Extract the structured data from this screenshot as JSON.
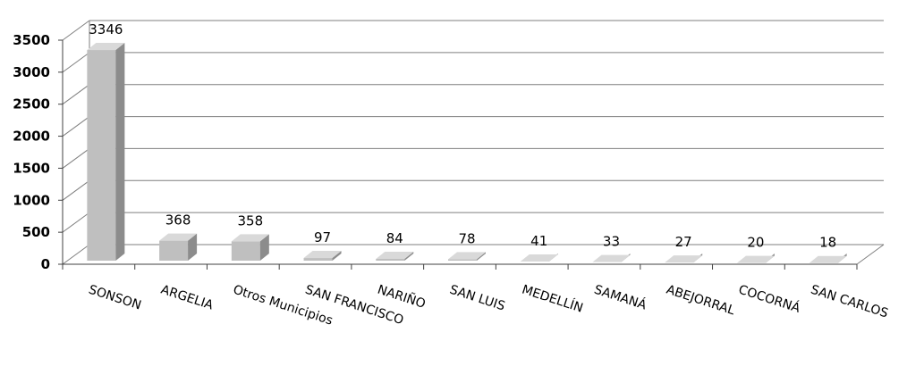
{
  "chart_data": {
    "type": "bar",
    "categories": [
      "SONSON",
      "ARGELIA",
      "Otros Municipios",
      "SAN FRANCISCO",
      "NARIÑO",
      "SAN LUIS",
      "MEDELLÍN",
      "SAMANÁ",
      "ABEJORRAL",
      "COCORNÁ",
      "SAN CARLOS"
    ],
    "values": [
      3346,
      368,
      358,
      97,
      84,
      78,
      41,
      33,
      27,
      20,
      18
    ],
    "data_labels": [
      "3346",
      "368",
      "358",
      "97",
      "84",
      "78",
      "41",
      "33",
      "27",
      "20",
      "18"
    ],
    "yticks": [
      "0",
      "500",
      "1000",
      "1500",
      "2000",
      "2500",
      "3000",
      "3500"
    ],
    "ylim": [
      0,
      3500
    ],
    "grid": true,
    "legend": "none",
    "style": "3d-column",
    "colors": {
      "bar_front": "#bfbfbf",
      "bar_side": "#8c8c8c",
      "bar_top": "#d9d9d9",
      "grid": "#7f7f7f"
    }
  }
}
